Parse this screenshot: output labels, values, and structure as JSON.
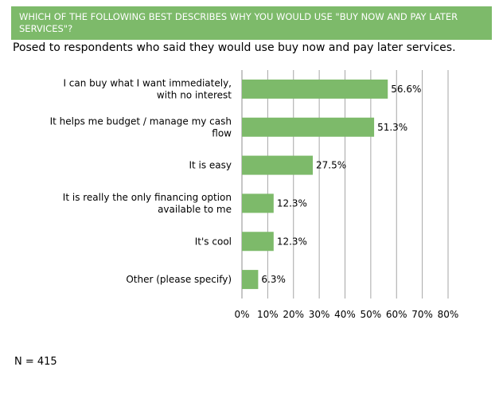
{
  "header": {
    "question": "WHICH OF THE FOLLOWING BEST DESCRIBES WHY YOU WOULD USE \"BUY NOW AND PAY LATER SERVICES\"?",
    "question_line1": "WHICH OF THE FOLLOWING BEST DESCRIBES WHY YOU WOULD USE \"BUY NOW AND PAY LATER",
    "question_line2": "SERVICES\"?",
    "subtitle": "Posed to respondents who said they would use buy now and pay later services.",
    "banner_color": "#7dba6a"
  },
  "chart_data": {
    "type": "bar",
    "orientation": "horizontal",
    "categories": [
      [
        "I can buy what I want immediately,",
        "with no interest"
      ],
      [
        "It helps me budget / manage my cash",
        "flow"
      ],
      [
        "It is easy"
      ],
      [
        "It is really the only financing option",
        "available to me"
      ],
      [
        "It's cool"
      ],
      [
        "Other (please specify)"
      ]
    ],
    "values": [
      56.6,
      51.3,
      27.5,
      12.3,
      12.3,
      6.3
    ],
    "value_labels": [
      "56.6%",
      "51.3%",
      "27.5%",
      "12.3%",
      "12.3%",
      "6.3%"
    ],
    "xlim": [
      0,
      80
    ],
    "x_ticks": [
      "0%",
      "10%",
      "20%",
      "30%",
      "40%",
      "50%",
      "60%",
      "70%",
      "80%"
    ],
    "grid": true,
    "bar_color": "#7dba6a"
  },
  "footer": {
    "n_label": "N = 415"
  }
}
